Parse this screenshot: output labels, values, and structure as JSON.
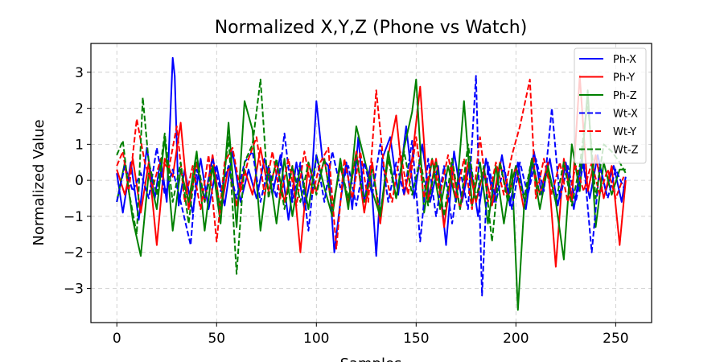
{
  "chart_data": {
    "type": "line",
    "title": "Normalized X,Y,Z (Phone vs Watch)",
    "xlabel": "Samples",
    "ylabel": "Normalized Value",
    "xlim": [
      -13,
      268
    ],
    "ylim": [
      -3.95,
      3.8
    ],
    "xticks": [
      0,
      50,
      100,
      150,
      200,
      250
    ],
    "yticks": [
      -3,
      -2,
      -1,
      0,
      1,
      2,
      3
    ],
    "xtick_labels": [
      "0",
      "50",
      "100",
      "150",
      "200",
      "250"
    ],
    "ytick_labels": [
      "−3",
      "−2",
      "−1",
      "0",
      "1",
      "2",
      "3"
    ],
    "grid": true,
    "legend_position": "top-right",
    "series": [
      {
        "name": "Ph-X",
        "color": "#0000ff",
        "dashed": false,
        "x": [
          0,
          3,
          7,
          11,
          15,
          19,
          22,
          25,
          28,
          29,
          31,
          34,
          38,
          42,
          46,
          50,
          54,
          58,
          62,
          66,
          70,
          74,
          78,
          82,
          86,
          90,
          94,
          98,
          100,
          103,
          106,
          109,
          112,
          115,
          118,
          121,
          124,
          127,
          130,
          133,
          137,
          141,
          145,
          149,
          153,
          157,
          161,
          165,
          169,
          173,
          177,
          181,
          185,
          189,
          193,
          197,
          201,
          205,
          209,
          213,
          217,
          221,
          225,
          229,
          233,
          237,
          241,
          245,
          249,
          253,
          255
        ],
        "y": [
          0.2,
          -0.9,
          0.5,
          -1.1,
          0.9,
          -0.5,
          0.6,
          -0.6,
          3.4,
          2.9,
          -0.7,
          0.3,
          -0.9,
          0.6,
          -0.8,
          0.4,
          -0.7,
          0.8,
          -0.6,
          0.3,
          -0.5,
          0.6,
          -0.4,
          0.7,
          -1.1,
          0.5,
          -0.8,
          0.3,
          2.2,
          0.6,
          0.4,
          -2.0,
          -0.6,
          0.5,
          -0.8,
          1.2,
          -0.6,
          0.4,
          -2.1,
          0.6,
          1.2,
          -0.4,
          1.5,
          -0.5,
          1.0,
          -0.6,
          0.4,
          -1.8,
          0.8,
          -0.6,
          0.5,
          -1.0,
          0.6,
          -0.6,
          0.7,
          -0.7,
          0.5,
          -0.8,
          0.8,
          -0.4,
          0.6,
          -0.7,
          0.5,
          -0.8,
          0.6,
          -0.5,
          0.7,
          -0.3,
          0.4,
          -0.6,
          0.1
        ]
      },
      {
        "name": "Ph-Y",
        "color": "#ff0000",
        "dashed": false,
        "x": [
          0,
          4,
          8,
          12,
          16,
          20,
          24,
          28,
          32,
          36,
          40,
          44,
          48,
          52,
          56,
          60,
          64,
          68,
          72,
          76,
          80,
          84,
          88,
          92,
          96,
          100,
          104,
          108,
          112,
          116,
          120,
          124,
          128,
          132,
          136,
          140,
          144,
          148,
          152,
          156,
          160,
          164,
          168,
          172,
          176,
          180,
          184,
          188,
          192,
          196,
          200,
          204,
          208,
          212,
          216,
          220,
          224,
          228,
          232,
          236,
          240,
          244,
          248,
          252,
          255
        ],
        "y": [
          0.3,
          -0.4,
          0.6,
          -0.9,
          0.5,
          -1.8,
          0.6,
          0.1,
          1.6,
          -0.8,
          0.5,
          -0.6,
          0.7,
          -0.9,
          0.4,
          -0.7,
          0.3,
          -0.4,
          0.9,
          -0.3,
          0.5,
          -0.6,
          0.4,
          -2.0,
          0.5,
          -0.3,
          0.6,
          -0.8,
          0.4,
          -0.6,
          0.8,
          -0.9,
          0.5,
          -1.2,
          0.7,
          1.8,
          -0.4,
          0.6,
          2.6,
          -0.6,
          0.6,
          -1.3,
          0.4,
          -0.8,
          0.5,
          -0.6,
          0.3,
          -0.7,
          0.5,
          -0.5,
          0.4,
          -0.8,
          0.6,
          -0.4,
          0.5,
          -2.4,
          0.6,
          -0.6,
          2.9,
          -0.3,
          0.7,
          -0.5,
          0.4,
          -1.8,
          0.0
        ]
      },
      {
        "name": "Ph-Z",
        "color": "#008000",
        "dashed": false,
        "x": [
          0,
          4,
          8,
          12,
          16,
          20,
          24,
          28,
          32,
          36,
          40,
          44,
          48,
          52,
          56,
          60,
          64,
          68,
          72,
          76,
          80,
          84,
          88,
          92,
          96,
          100,
          104,
          108,
          112,
          116,
          120,
          124,
          128,
          132,
          136,
          140,
          144,
          148,
          150,
          154,
          158,
          162,
          166,
          170,
          174,
          178,
          182,
          186,
          190,
          194,
          198,
          201,
          204,
          208,
          212,
          216,
          220,
          224,
          228,
          232,
          236,
          240,
          244,
          248,
          252,
          255
        ],
        "y": [
          -0.6,
          0.5,
          -1.1,
          -2.1,
          0.2,
          -0.8,
          1.2,
          -1.4,
          0.3,
          -0.6,
          0.8,
          -1.4,
          0.4,
          -1.2,
          1.6,
          -1.3,
          2.2,
          1.4,
          -1.4,
          0.4,
          -1.2,
          0.6,
          -1.0,
          0.4,
          -0.8,
          0.7,
          -0.2,
          -1.0,
          0.6,
          -0.8,
          1.5,
          0.6,
          -0.3,
          -1.0,
          0.8,
          -0.5,
          0.9,
          1.9,
          2.8,
          -0.9,
          0.6,
          -0.8,
          0.4,
          -0.6,
          2.2,
          -0.7,
          0.5,
          -1.2,
          0.4,
          -1.2,
          0.3,
          -3.6,
          -0.8,
          0.6,
          -0.8,
          0.4,
          -0.6,
          -2.2,
          1.0,
          -0.3,
          2.5,
          -1.3,
          0.5,
          -0.4,
          0.3,
          0.3
        ]
      },
      {
        "name": "Wt-X",
        "color": "#0000ff",
        "dashed": true,
        "x": [
          0,
          4,
          8,
          12,
          16,
          20,
          24,
          28,
          32,
          37,
          40,
          44,
          48,
          52,
          56,
          60,
          64,
          68,
          72,
          76,
          80,
          84,
          88,
          92,
          96,
          100,
          104,
          108,
          112,
          116,
          120,
          124,
          128,
          132,
          136,
          140,
          144,
          148,
          152,
          156,
          160,
          164,
          168,
          172,
          176,
          180,
          183,
          186,
          190,
          194,
          198,
          202,
          206,
          210,
          214,
          218,
          222,
          226,
          230,
          234,
          238,
          242,
          246,
          250,
          254
        ],
        "y": [
          -0.6,
          0.4,
          -0.3,
          0.2,
          -0.5,
          0.9,
          -0.4,
          0.3,
          -0.6,
          -1.8,
          0.3,
          -0.5,
          0.6,
          -0.3,
          0.4,
          -0.5,
          0.5,
          0.8,
          -0.6,
          0.4,
          -0.5,
          1.3,
          -0.6,
          0.5,
          -1.4,
          0.7,
          -0.6,
          0.8,
          -0.2,
          0.4,
          -0.7,
          0.5,
          -0.4,
          1.0,
          -0.6,
          0.5,
          -0.4,
          1.1,
          -1.7,
          0.6,
          -1.0,
          0.4,
          -1.2,
          0.3,
          -0.8,
          2.9,
          -3.2,
          0.5,
          -0.6,
          0.4,
          -0.8,
          0.5,
          -0.4,
          0.6,
          -0.3,
          2.0,
          -0.5,
          0.4,
          -0.6,
          0.5,
          -2.0,
          0.4,
          -0.5,
          0.3,
          -0.2
        ]
      },
      {
        "name": "Wt-Y",
        "color": "#ff0000",
        "dashed": true,
        "x": [
          0,
          3,
          6,
          10,
          14,
          18,
          22,
          26,
          30,
          34,
          38,
          42,
          46,
          50,
          54,
          58,
          62,
          66,
          70,
          74,
          78,
          82,
          86,
          90,
          94,
          98,
          102,
          106,
          110,
          114,
          118,
          122,
          126,
          130,
          134,
          138,
          142,
          146,
          150,
          154,
          158,
          162,
          166,
          170,
          174,
          178,
          182,
          186,
          190,
          194,
          198,
          202,
          207,
          210,
          214,
          218,
          222,
          226,
          230,
          234,
          238,
          242,
          246,
          250,
          254
        ],
        "y": [
          0.4,
          0.8,
          -0.3,
          1.7,
          0.5,
          -0.2,
          0.6,
          0.3,
          1.5,
          -0.6,
          0.4,
          -0.8,
          0.7,
          -1.7,
          0.5,
          0.9,
          -0.3,
          0.6,
          1.2,
          -0.4,
          0.8,
          -0.5,
          0.6,
          -0.7,
          0.8,
          -0.4,
          0.5,
          0.9,
          -1.9,
          0.6,
          -0.5,
          0.8,
          -0.6,
          2.5,
          0.3,
          -0.6,
          0.8,
          -0.4,
          1.2,
          -0.5,
          0.6,
          -0.4,
          0.7,
          -0.5,
          0.6,
          -0.8,
          1.2,
          -0.6,
          0.5,
          -0.4,
          0.7,
          1.5,
          2.8,
          -0.5,
          0.6,
          -0.4,
          0.5,
          -0.6,
          0.4,
          -0.3,
          0.5,
          -0.4,
          0.3,
          -0.5,
          0.1
        ]
      },
      {
        "name": "Wt-Z",
        "color": "#008000",
        "dashed": true,
        "x": [
          0,
          3,
          6,
          10,
          13,
          16,
          20,
          24,
          28,
          32,
          36,
          40,
          44,
          48,
          52,
          56,
          60,
          64,
          68,
          72,
          76,
          80,
          84,
          88,
          92,
          96,
          100,
          104,
          108,
          112,
          116,
          120,
          124,
          128,
          132,
          136,
          140,
          144,
          148,
          152,
          156,
          160,
          164,
          168,
          172,
          176,
          180,
          184,
          188,
          192,
          196,
          200,
          204,
          208,
          212,
          216,
          220,
          224,
          228,
          232,
          236,
          240,
          244,
          248,
          252,
          255
        ],
        "y": [
          0.7,
          1.1,
          -0.3,
          -1.5,
          2.3,
          0.5,
          -0.4,
          1.3,
          -0.6,
          0.5,
          -1.2,
          0.7,
          -0.6,
          0.4,
          -0.8,
          1.2,
          -2.6,
          0.5,
          1.0,
          2.8,
          -0.5,
          0.6,
          -0.8,
          0.4,
          -0.6,
          0.5,
          -0.4,
          0.6,
          -0.8,
          0.4,
          -0.5,
          0.7,
          -0.6,
          0.3,
          -0.9,
          0.6,
          -0.5,
          0.8,
          -0.4,
          0.6,
          -0.7,
          0.5,
          -1.0,
          0.6,
          -0.8,
          1.0,
          -0.5,
          0.4,
          -1.7,
          0.5,
          -0.6,
          0.4,
          -0.5,
          0.6,
          -0.4,
          0.3,
          -0.6,
          0.5,
          -0.7,
          0.4,
          2.2,
          -0.5,
          1.0,
          0.8,
          0.5,
          0.2
        ]
      }
    ]
  }
}
